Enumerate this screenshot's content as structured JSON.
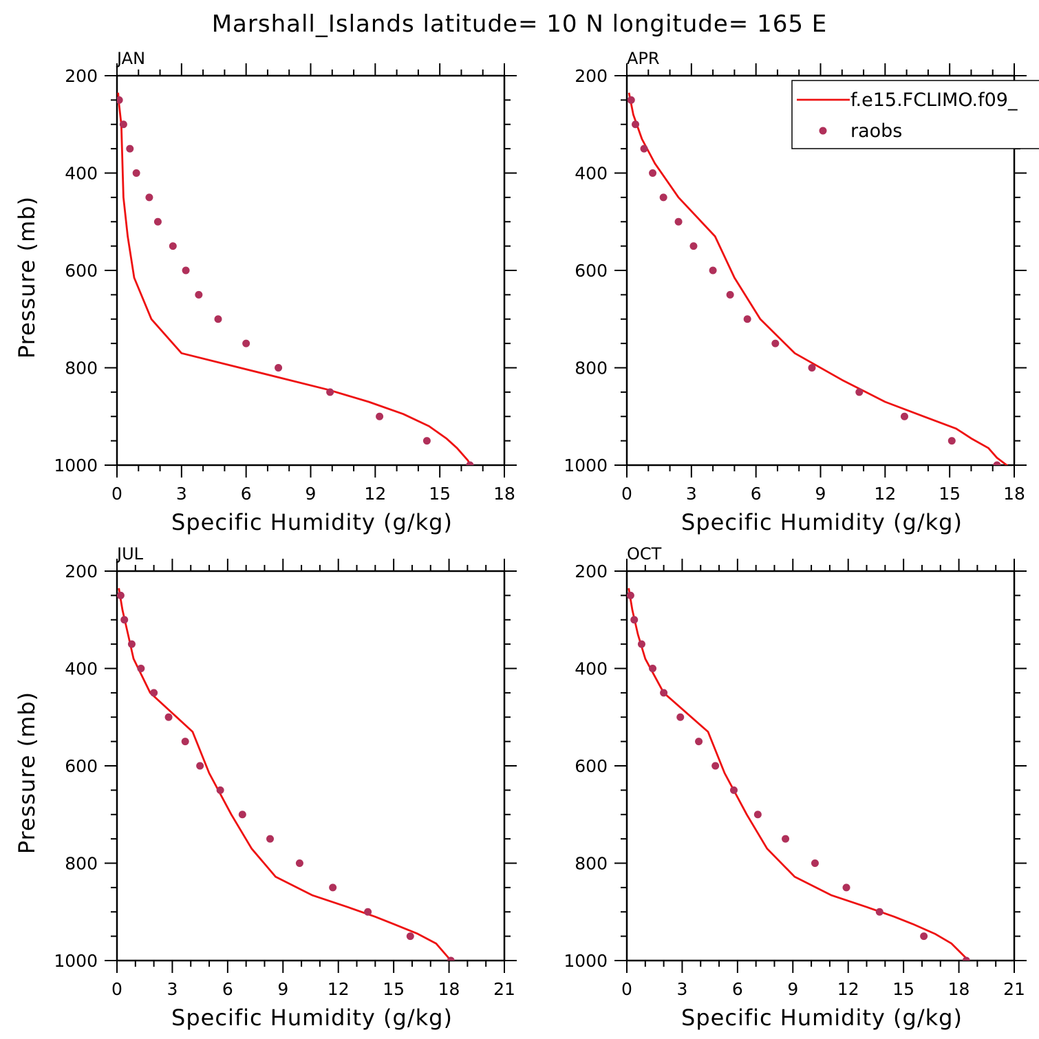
{
  "title": "Marshall_Islands  latitude= 10 N longitude= 165 E",
  "colors": {
    "model": "#ee1111",
    "obs": "#b0305a",
    "axis": "#000000"
  },
  "legend": {
    "model_label": "f.e15.FCLIMO.f09_",
    "obs_label": "raobs"
  },
  "chart_data": [
    {
      "type": "line",
      "panel": "JAN",
      "xlabel": "Specific Humidity (g/kg)",
      "ylabel": "Pressure (mb)",
      "xlim": [
        0,
        18
      ],
      "xticks": [
        "0",
        "3",
        "6",
        "9",
        "12",
        "15",
        "18"
      ],
      "ylim": [
        200,
        1000
      ],
      "yticks": [
        "200",
        "400",
        "600",
        "800",
        "1000"
      ],
      "series": [
        {
          "name": "f.e15.FCLIMO.f09_",
          "kind": "line",
          "x": [
            0.05,
            0.1,
            0.2,
            0.3,
            0.5,
            0.8,
            1.6,
            3.0,
            9.8,
            11.7,
            13.3,
            14.5,
            15.3,
            15.8,
            16.3,
            16.5
          ],
          "y": [
            235,
            260,
            300,
            450,
            530,
            615,
            700,
            770,
            845,
            870,
            895,
            920,
            945,
            965,
            990,
            1005
          ]
        },
        {
          "name": "raobs",
          "kind": "scatter",
          "x": [
            0.1,
            0.3,
            0.6,
            0.9,
            1.5,
            1.9,
            2.6,
            3.2,
            3.8,
            4.7,
            6.0,
            7.5,
            9.9,
            12.2,
            14.4,
            16.4
          ],
          "y": [
            250,
            300,
            350,
            400,
            450,
            500,
            550,
            600,
            650,
            700,
            750,
            800,
            850,
            900,
            950,
            1000
          ]
        }
      ]
    },
    {
      "type": "line",
      "panel": "APR",
      "xlabel": "Specific Humidity (g/kg)",
      "ylabel": "",
      "xlim": [
        0,
        18
      ],
      "xticks": [
        "0",
        "3",
        "6",
        "9",
        "12",
        "15",
        "18"
      ],
      "ylim": [
        200,
        1000
      ],
      "yticks": [
        "200",
        "400",
        "600",
        "800",
        "1000"
      ],
      "legend": true,
      "series": [
        {
          "name": "f.e15.FCLIMO.f09_",
          "kind": "line",
          "x": [
            0.1,
            0.3,
            0.7,
            1.3,
            2.4,
            4.1,
            5.0,
            6.2,
            7.8,
            10.0,
            12.0,
            13.8,
            15.3,
            16.0,
            16.8,
            17.2,
            17.8
          ],
          "y": [
            235,
            280,
            330,
            380,
            450,
            530,
            615,
            700,
            770,
            825,
            870,
            900,
            925,
            945,
            965,
            985,
            1005
          ]
        },
        {
          "name": "raobs",
          "kind": "scatter",
          "x": [
            0.2,
            0.4,
            0.8,
            1.2,
            1.7,
            2.4,
            3.1,
            4.0,
            4.8,
            5.6,
            6.9,
            8.6,
            10.8,
            12.9,
            15.1,
            17.2
          ],
          "y": [
            250,
            300,
            350,
            400,
            450,
            500,
            550,
            600,
            650,
            700,
            750,
            800,
            850,
            900,
            950,
            1000
          ]
        }
      ]
    },
    {
      "type": "line",
      "panel": "JUL",
      "xlabel": "Specific Humidity (g/kg)",
      "ylabel": "Pressure (mb)",
      "xlim": [
        0,
        21
      ],
      "xticks": [
        "0",
        "3",
        "6",
        "9",
        "12",
        "15",
        "18",
        "21"
      ],
      "ylim": [
        200,
        1000
      ],
      "yticks": [
        "200",
        "400",
        "600",
        "800",
        "1000"
      ],
      "series": [
        {
          "name": "f.e15.FCLIMO.f09_",
          "kind": "line",
          "x": [
            0.1,
            0.3,
            0.6,
            0.9,
            1.8,
            4.1,
            5.0,
            6.2,
            7.3,
            8.6,
            10.6,
            12.5,
            14.0,
            15.0,
            16.3,
            17.3,
            18.1
          ],
          "y": [
            235,
            280,
            330,
            380,
            450,
            530,
            615,
            700,
            770,
            828,
            866,
            890,
            910,
            925,
            945,
            965,
            1000
          ]
        },
        {
          "name": "raobs",
          "kind": "scatter",
          "x": [
            0.2,
            0.4,
            0.8,
            1.3,
            2.0,
            2.8,
            3.7,
            4.5,
            5.6,
            6.8,
            8.3,
            9.9,
            11.7,
            13.6,
            15.9,
            18.1
          ],
          "y": [
            250,
            300,
            350,
            400,
            450,
            500,
            550,
            600,
            650,
            700,
            750,
            800,
            850,
            900,
            950,
            1000
          ]
        }
      ]
    },
    {
      "type": "line",
      "panel": "OCT",
      "xlabel": "Specific Humidity (g/kg)",
      "ylabel": "",
      "xlim": [
        0,
        21
      ],
      "xticks": [
        "0",
        "3",
        "6",
        "9",
        "12",
        "15",
        "18",
        "21"
      ],
      "ylim": [
        200,
        1000
      ],
      "yticks": [
        "200",
        "400",
        "600",
        "800",
        "1000"
      ],
      "series": [
        {
          "name": "f.e15.FCLIMO.f09_",
          "kind": "line",
          "x": [
            0.1,
            0.3,
            0.6,
            1.0,
            2.0,
            4.4,
            5.3,
            6.5,
            7.6,
            9.1,
            11.1,
            13.0,
            14.5,
            15.5,
            16.7,
            17.6,
            18.6
          ],
          "y": [
            235,
            280,
            330,
            380,
            450,
            530,
            615,
            700,
            770,
            828,
            866,
            890,
            910,
            925,
            945,
            965,
            1003
          ]
        },
        {
          "name": "raobs",
          "kind": "scatter",
          "x": [
            0.2,
            0.4,
            0.8,
            1.4,
            2.0,
            2.9,
            3.9,
            4.8,
            5.8,
            7.1,
            8.6,
            10.2,
            11.9,
            13.7,
            16.1,
            18.4
          ],
          "y": [
            250,
            300,
            350,
            400,
            450,
            500,
            550,
            600,
            650,
            700,
            750,
            800,
            850,
            900,
            950,
            1000
          ]
        }
      ]
    }
  ]
}
